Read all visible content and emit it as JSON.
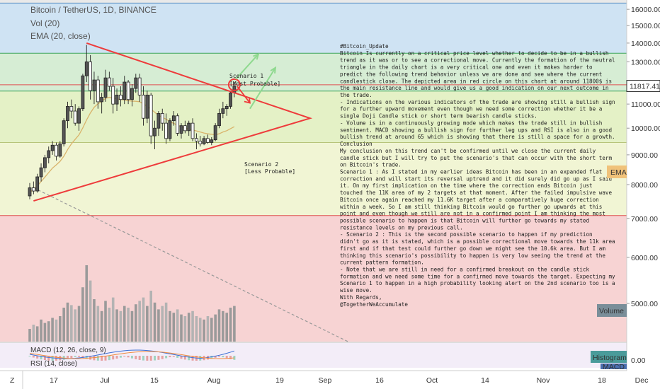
{
  "chart_data": {
    "type": "candlestick",
    "title": "Bitcoin / TetherUS, 1D, BINANCE",
    "indicators": [
      "Vol (20)",
      "EMA (20, close)"
    ],
    "price_axis": {
      "ticks": [
        5000,
        6000,
        7000,
        8000,
        9000,
        10000,
        11000,
        12000,
        13000,
        14000,
        15000,
        16000
      ],
      "ylim": [
        4300,
        16600
      ],
      "scale": "log"
    },
    "current_price": "11817.41",
    "ema_tag": "EMA",
    "volume_tag": "Volume",
    "histogram_tag": "Histogram",
    "macd_tag": "MACD",
    "histogram_tick": "0.00",
    "x_ticks": [
      "17",
      "Jul",
      "15",
      "Aug",
      "19",
      "Sep",
      "16",
      "Oct",
      "14",
      "Nov",
      "18",
      "Dec"
    ],
    "corner_left": "Z",
    "corner_right": "⚙",
    "zones": [
      {
        "from": 13450,
        "to": 16400,
        "color": "#cfe3f3"
      },
      {
        "from": 11580,
        "to": 13450,
        "color": "#d6edd4"
      },
      {
        "from": 9450,
        "to": 11580,
        "color": "#e4f1c6"
      },
      {
        "from": 7080,
        "to": 9450,
        "color": "#f1f5d4"
      },
      {
        "from": 4300,
        "to": 7080,
        "color": "#f7d3d3"
      }
    ],
    "levels": [
      {
        "value": 16400,
        "color": "#5a8fc4"
      },
      {
        "value": 13450,
        "color": "#3aa35a"
      },
      {
        "value": 11870,
        "color": "#e05050"
      },
      {
        "value": 11580,
        "color": "#3aa35a"
      },
      {
        "value": 9450,
        "color": "#b7c47a"
      },
      {
        "value": 7080,
        "color": "#e05050"
      }
    ],
    "candles_ohlc": [
      [
        7650,
        8050,
        7550,
        7900
      ],
      [
        7900,
        8100,
        7700,
        7800
      ],
      [
        7800,
        8350,
        7750,
        8250
      ],
      [
        8250,
        8700,
        8100,
        8550
      ],
      [
        8550,
        9000,
        8400,
        8900
      ],
      [
        8900,
        9300,
        8700,
        9150
      ],
      [
        9150,
        9500,
        9000,
        9350
      ],
      [
        9350,
        9450,
        8800,
        8950
      ],
      [
        8950,
        9500,
        8900,
        9400
      ],
      [
        9400,
        10400,
        9300,
        10300
      ],
      [
        10300,
        11100,
        10000,
        10900
      ],
      [
        10900,
        11200,
        10400,
        10700
      ],
      [
        10700,
        11000,
        10100,
        10200
      ],
      [
        10200,
        10900,
        9900,
        10800
      ],
      [
        10800,
        12400,
        10700,
        12300
      ],
      [
        12300,
        13900,
        12000,
        13000
      ],
      [
        13000,
        13350,
        11200,
        11600
      ],
      [
        11600,
        12500,
        11000,
        12100
      ],
      [
        12100,
        12300,
        10800,
        11100
      ],
      [
        11100,
        11500,
        10600,
        11300
      ],
      [
        11300,
        12600,
        11100,
        12200
      ],
      [
        12200,
        12500,
        11600,
        11800
      ],
      [
        11800,
        12200,
        10600,
        11000
      ],
      [
        11000,
        11700,
        10700,
        11400
      ],
      [
        11400,
        11800,
        10900,
        11200
      ],
      [
        11200,
        12300,
        11000,
        12000
      ],
      [
        12000,
        12100,
        11000,
        11200
      ],
      [
        11200,
        11900,
        10900,
        11700
      ],
      [
        11700,
        12400,
        11500,
        12200
      ],
      [
        12200,
        12400,
        11100,
        11400
      ],
      [
        11400,
        11800,
        10100,
        10400
      ],
      [
        10400,
        11600,
        10200,
        11400
      ],
      [
        11400,
        11500,
        9400,
        9700
      ],
      [
        9700,
        10300,
        9200,
        10000
      ],
      [
        10000,
        10700,
        9700,
        10600
      ],
      [
        10600,
        10800,
        9900,
        10200
      ],
      [
        10200,
        10600,
        9400,
        9600
      ],
      [
        9600,
        10400,
        9500,
        10300
      ],
      [
        10300,
        10700,
        10100,
        10500
      ],
      [
        10500,
        10600,
        9700,
        9800
      ],
      [
        9800,
        10200,
        9600,
        10100
      ],
      [
        10100,
        10300,
        9800,
        9900
      ],
      [
        9900,
        10300,
        9700,
        10200
      ],
      [
        10200,
        10400,
        9500,
        9600
      ],
      [
        9600,
        9800,
        9200,
        9500
      ],
      [
        9500,
        9700,
        9300,
        9400
      ],
      [
        9400,
        9700,
        9350,
        9600
      ],
      [
        9600,
        9750,
        9400,
        9450
      ],
      [
        9450,
        9650,
        9350,
        9550
      ],
      [
        9550,
        10200,
        9500,
        10100
      ],
      [
        10100,
        10800,
        10000,
        10600
      ],
      [
        10600,
        11100,
        10400,
        10800
      ],
      [
        10800,
        11000,
        10500,
        10900
      ],
      [
        10900,
        11600,
        10800,
        11500
      ],
      [
        11500,
        12000,
        11300,
        11800
      ]
    ],
    "ema": [
      7750,
      7850,
      7960,
      8100,
      8240,
      8390,
      8540,
      8650,
      8770,
      8950,
      9190,
      9400,
      9570,
      9740,
      10010,
      10330,
      10620,
      10860,
      11010,
      11120,
      11250,
      11300,
      11260,
      11230,
      11200,
      11180,
      11150,
      11130,
      11120,
      11100,
      11010,
      10900,
      10780,
      10650,
      10520,
      10440,
      10360,
      10270,
      10190,
      10120,
      10060,
      10000,
      9960,
      9930,
      9890,
      9850,
      9810,
      9780,
      9760,
      9740,
      9780,
      9850,
      9900,
      9980,
      10060
    ],
    "volume": [
      150,
      200,
      180,
      260,
      220,
      240,
      280,
      260,
      300,
      400,
      460,
      430,
      380,
      420,
      640,
      900,
      720,
      500,
      420,
      360,
      480,
      400,
      520,
      380,
      360,
      420,
      400,
      360,
      440,
      480,
      520,
      420,
      600,
      460,
      380,
      420,
      460,
      360,
      340,
      380,
      320,
      300,
      340,
      360,
      300,
      280,
      260,
      300,
      280,
      320,
      380,
      360,
      340,
      400,
      420
    ],
    "triangle": {
      "apex_day": 74,
      "apex_price": 10400,
      "upper_start": [
        15,
        14000
      ],
      "lower_start": [
        1,
        7500
      ]
    },
    "dashed_trend": {
      "start": [
        1,
        7900
      ],
      "end": [
        84,
        4300
      ]
    },
    "scenario1_label": [
      "Scenario 1",
      "[Most Probable]"
    ],
    "scenario2_label": [
      "Scenario 2",
      "[Less Probable]"
    ],
    "note_lines": [
      "#Bitcoin_Update",
      "Bitcoin Is currently on a critical price level whether to decide to be in a bullish",
      "trend as it was or to see a correctional move. Currently the formation of the neutral",
      "triangle in the daily chart is a very critical one and even it makes harder to",
      "predict the following trend behavior unless we are done and see where the current",
      "candlestick close. The depicted area in red circle on this chart at around 11800$ is",
      "the main resistance line and would give us a good indication on our next outcome in",
      "the trade.",
      "- Indications on the various indicators of the trade are showing still a bullish sign",
      "for a further upward movement even though we need some correction whether it be a",
      "single Doji Candle stick or short term bearish candle sticks.",
      "- Volume is in a continuously growing mode which makes the trade still in bullish",
      "sentiment. MACD showing a bullish sign for further leg ups and RSI is also in a good",
      "bullish trend at around 65 which is showing that there is still a space for a growth.",
      "Conclusion",
      "My conclusion on this trend can't be confirmed until we close the current daily",
      "candle stick but I will try to put the scenario's that can occur with the short term",
      "on Bitcoin's trade.",
      "Scenario 1 : As I stated in my earlier ideas Bitcoin has been in an expanded flat",
      "correction and will start its reversal uptrend and it did surely did go up as I said",
      "it. On my first implication on the time where the correction ends Bitcoin just",
      "touched the 11K area of my 2 targets at that moment. After the failed impulsive wave",
      "Bitcoin once again reached my 11.6K target after a comparatively huge correction",
      "within a week. So I am still thinking Bitcoin would go further go upwards at this",
      "point and even though we still are not in a confirmed point I am thinking the most",
      "possible scenario to happen is that Bitcoin will further go towards my stated",
      "resistance levels on my previous call.",
      "- Scenario 2 : This is the second possible scenario to happen if my prediction",
      "didn't go as it is stated, which is a possible correctional move towards the 11k area",
      "first and if that test could further go down we might see the 10.6k area. But I am",
      "thinking this scenario's possibility to happen is very low seeing the trend at the",
      "current pattern formation.",
      "- Note that we are still in need for a confirmed breakout on the candle stick",
      "formation and we need some time for a confirmed move towards the target. Expecting my",
      "Scenario 1 to happen in a high probability looking alert on the 2nd scenario too is a",
      "wise move.",
      "With Regards,",
      "@TogetherWeAccumulate"
    ],
    "sub_labels": {
      "macd": "MACD (12, 26, close, 9)",
      "rsi": "RSI (14, close)"
    },
    "colors": {
      "up": "#4f4f4f",
      "down": "#ffffff",
      "triangle": "#ee3b3b",
      "arrows": "#8fd98f",
      "ema": "#d9b36a"
    }
  }
}
